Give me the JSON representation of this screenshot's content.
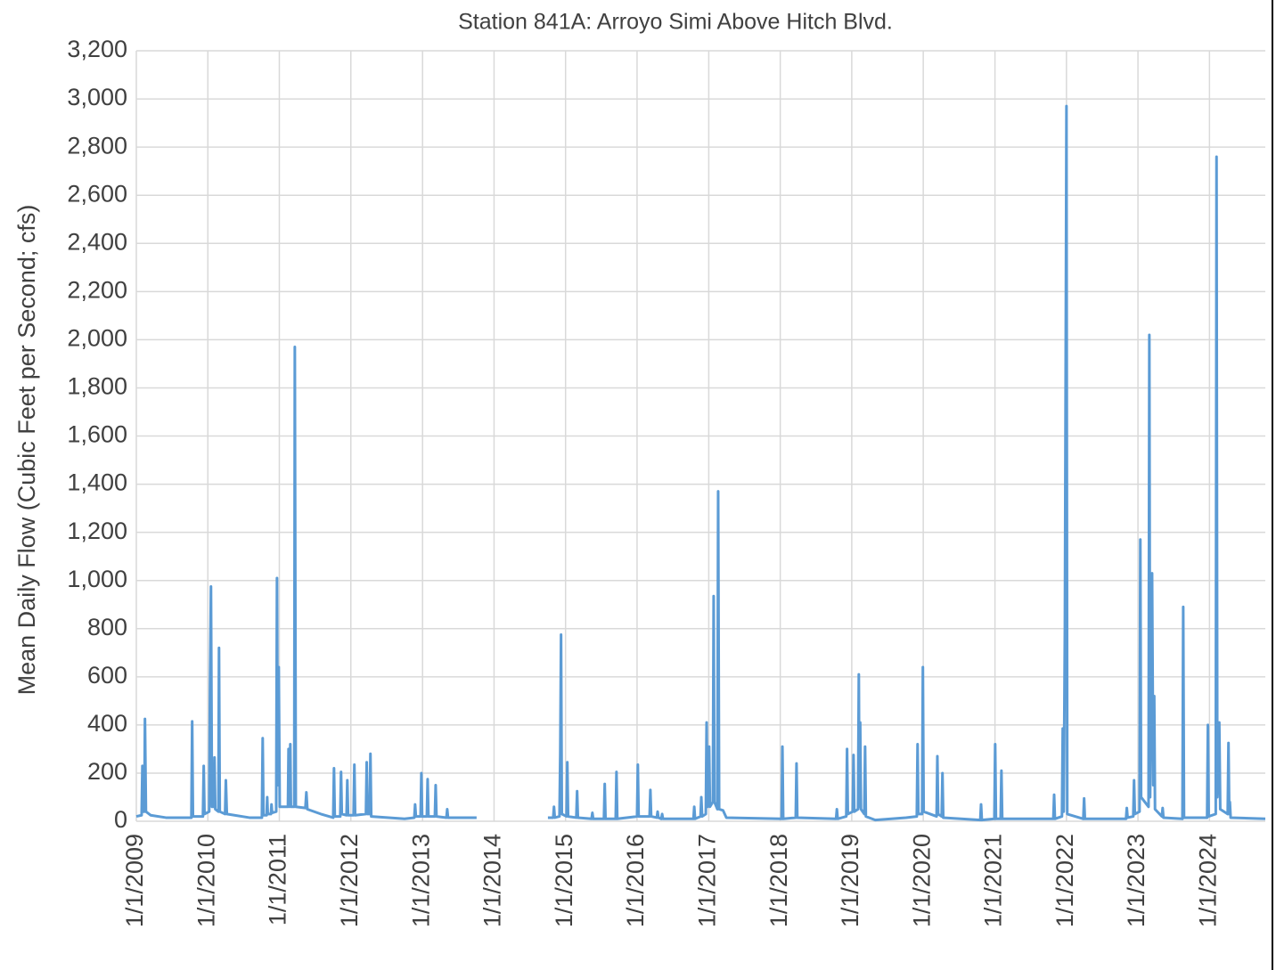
{
  "chart_data": {
    "type": "line",
    "title": "Station 841A: Arroyo Simi Above Hitch Blvd.",
    "y_label": "Mean Daily Flow (Cubic Feet per Second; cfs)",
    "ylim": [
      0,
      3200
    ],
    "yticks": [
      0,
      200,
      400,
      600,
      800,
      {
        "value": 1000,
        "label": "1,000"
      },
      {
        "value": 1200,
        "label": "1,200"
      },
      {
        "value": 1400,
        "label": "1,400"
      },
      {
        "value": 1600,
        "label": "1,600"
      },
      {
        "value": 1800,
        "label": "1,800"
      },
      {
        "value": 2000,
        "label": "2,000"
      },
      {
        "value": 2200,
        "label": "2,200"
      },
      {
        "value": 2400,
        "label": "2,400"
      },
      {
        "value": 2600,
        "label": "2,600"
      },
      {
        "value": 2800,
        "label": "2,800"
      },
      {
        "value": 3000,
        "label": "3,000"
      },
      {
        "value": 3200,
        "label": "3,200"
      }
    ],
    "xlim": [
      "1/1/2009",
      "10/12/2024"
    ],
    "xticks": [
      "1/1/2009",
      "1/1/2010",
      "1/1/2011",
      "1/1/2012",
      "1/1/2013",
      "1/1/2014",
      "1/1/2015",
      "1/1/2016",
      "1/1/2017",
      "1/1/2018",
      "1/1/2019",
      "1/1/2020",
      "1/1/2021",
      "1/1/2022",
      "1/1/2023",
      "1/1/2024"
    ],
    "grid": true,
    "x": [
      "1/1/2009",
      "1/28/2009",
      "2/1/2009",
      "2/5/2009",
      "2/11/2009",
      "2/14/2009",
      "2/19/2009",
      "3/15/2009",
      "6/1/2009",
      "10/9/2009",
      "10/13/2009",
      "10/17/2009",
      "12/7/2009",
      "12/11/2009",
      "12/15/2009",
      "1/8/2010",
      "1/12/2010",
      "1/17/2010",
      "1/22/2010",
      "2/1/2010",
      "2/4/2010",
      "2/8/2010",
      "2/24/2010",
      "2/27/2010",
      "3/3/2010",
      "3/30/2010",
      "4/3/2010",
      "4/8/2010",
      "8/1/2010",
      "10/4/2010",
      "10/8/2010",
      "10/12/2010",
      "10/28/2010",
      "10/31/2010",
      "11/3/2010",
      "11/19/2010",
      "11/22/2010",
      "11/25/2010",
      "12/16/2010",
      "12/20/2010",
      "12/24/2010",
      "12/29/2010",
      "1/3/2011",
      "2/14/2011",
      "2/17/2011",
      "2/21/2011",
      "2/26/2011",
      "3/1/2011",
      "3/18/2011",
      "3/21/2011",
      "3/26/2011",
      "5/14/2011",
      "5/19/2011",
      "5/24/2011",
      "8/1/2011",
      "10/3/2011",
      "10/7/2011",
      "10/11/2011",
      "11/8/2011",
      "11/12/2011",
      "11/16/2011",
      "12/10/2011",
      "12/14/2011",
      "12/18/2011",
      "1/15/2012",
      "1/19/2012",
      "1/23/2012",
      "3/18/2012",
      "3/22/2012",
      "3/26/2012",
      "4/6/2012",
      "4/10/2012",
      "4/14/2012",
      "10/1/2012",
      "11/20/2012",
      "11/24/2012",
      "11/28/2012",
      "12/22/2012",
      "12/26/2012",
      "12/30/2012",
      "1/23/2013",
      "1/27/2013",
      "1/31/2013",
      "3/5/2013",
      "3/9/2013",
      "3/13/2013",
      "5/3/2013",
      "5/7/2013",
      "5/11/2013",
      "10/4/2013",
      "10/15/2013",
      "10/3/2014",
      "10/30/2014",
      "11/3/2014",
      "11/7/2014",
      "12/1/2014",
      "12/5/2014",
      "12/9/2014",
      "12/13/2014",
      "1/6/2015",
      "1/10/2015",
      "1/14/2015",
      "2/25/2015",
      "3/1/2015",
      "3/5/2015",
      "5/14/2015",
      "5/18/2015",
      "5/22/2015",
      "7/16/2015",
      "7/20/2015",
      "7/24/2015",
      "9/14/2015",
      "9/18/2015",
      "9/22/2015",
      "1/1/2016",
      "1/5/2016",
      "1/9/2016",
      "3/5/2016",
      "3/9/2016",
      "3/13/2016",
      "4/11/2016",
      "4/15/2016",
      "4/19/2016",
      "5/4/2016",
      "5/8/2016",
      "5/12/2016",
      "10/15/2016",
      "10/19/2016",
      "10/23/2016",
      "11/20/2016",
      "11/24/2016",
      "11/28/2016",
      "12/17/2016",
      "12/21/2016",
      "12/25/2016",
      "1/3/2017",
      "1/7/2017",
      "1/22/2017",
      "1/26/2017",
      "1/30/2017",
      "2/14/2017",
      "2/18/2017",
      "2/23/2017",
      "3/15/2017",
      "4/1/2017",
      "1/8/2018",
      "1/12/2018",
      "1/16/2018",
      "3/21/2018",
      "3/25/2018",
      "3/29/2018",
      "10/13/2018",
      "10/17/2018",
      "10/21/2018",
      "12/4/2018",
      "12/8/2018",
      "12/12/2018",
      "1/6/2019",
      "1/10/2019",
      "1/14/2019",
      "2/2/2019",
      "2/6/2019",
      "2/9/2019",
      "2/13/2019",
      "2/17/2019",
      "3/6/2019",
      "3/10/2019",
      "3/14/2019",
      "5/1/2019",
      "10/5/2019",
      "11/29/2019",
      "12/3/2019",
      "12/7/2019",
      "12/26/2019",
      "12/30/2019",
      "1/3/2020",
      "3/9/2020",
      "3/13/2020",
      "3/17/2020",
      "4/4/2020",
      "4/8/2020",
      "4/12/2020",
      "10/18/2020",
      "10/22/2020",
      "10/26/2020",
      "12/29/2020",
      "1/2/2021",
      "1/6/2021",
      "1/30/2021",
      "2/3/2021",
      "2/7/2021",
      "10/26/2021",
      "10/30/2021",
      "11/3/2021",
      "12/9/2021",
      "12/13/2021",
      "12/18/2021",
      "12/24/2021",
      "1/1/2022",
      "1/5/2022",
      "3/28/2022",
      "4/1/2022",
      "4/5/2022",
      "11/1/2022",
      "11/5/2022",
      "11/9/2022",
      "12/8/2022",
      "12/12/2022",
      "12/16/2022",
      "1/9/2023",
      "1/13/2023",
      "1/17/2023",
      "2/24/2023",
      "2/28/2023",
      "3/4/2023",
      "3/14/2023",
      "3/20/2023",
      "3/25/2023",
      "3/29/2023",
      "5/3/2023",
      "5/7/2023",
      "5/11/2023",
      "8/16/2023",
      "8/20/2023",
      "8/24/2023",
      "12/20/2023",
      "12/24/2023",
      "12/28/2023",
      "2/2/2024",
      "2/6/2024",
      "2/10/2024",
      "2/20/2024",
      "2/25/2024",
      "4/3/2024",
      "4/7/2024",
      "4/11/2024",
      "4/14/2024",
      "4/18/2024",
      "10/12/2024"
    ],
    "series": [
      {
        "color": "#5b9bd5",
        "values": [
          20,
          25,
          230,
          40,
          40,
          425,
          40,
          25,
          15,
          15,
          415,
          20,
          20,
          230,
          30,
          40,
          550,
          975,
          60,
          60,
          265,
          50,
          40,
          720,
          40,
          30,
          170,
          30,
          15,
          15,
          345,
          25,
          25,
          100,
          30,
          30,
          70,
          35,
          40,
          1010,
          150,
          640,
          60,
          60,
          300,
          60,
          320,
          60,
          60,
          1970,
          60,
          55,
          120,
          50,
          30,
          15,
          220,
          20,
          20,
          205,
          30,
          25,
          170,
          25,
          25,
          235,
          25,
          30,
          245,
          30,
          30,
          280,
          20,
          10,
          15,
          70,
          20,
          20,
          200,
          20,
          20,
          175,
          20,
          20,
          150,
          20,
          15,
          50,
          15,
          15,
          null,
          15,
          15,
          60,
          15,
          20,
          280,
          775,
          30,
          20,
          245,
          20,
          15,
          125,
          15,
          10,
          35,
          10,
          10,
          155,
          10,
          10,
          205,
          10,
          20,
          235,
          20,
          20,
          130,
          20,
          15,
          40,
          15,
          10,
          30,
          10,
          10,
          60,
          10,
          20,
          100,
          20,
          30,
          410,
          60,
          310,
          60,
          80,
          935,
          80,
          50,
          1370,
          50,
          45,
          15,
          10,
          310,
          10,
          15,
          240,
          15,
          10,
          50,
          10,
          20,
          300,
          30,
          40,
          275,
          40,
          50,
          610,
          60,
          410,
          50,
          30,
          310,
          20,
          5,
          15,
          20,
          320,
          30,
          30,
          640,
          40,
          20,
          270,
          30,
          20,
          200,
          15,
          5,
          70,
          5,
          10,
          320,
          10,
          10,
          210,
          10,
          10,
          110,
          10,
          20,
          385,
          40,
          810,
          2970,
          30,
          10,
          95,
          10,
          10,
          55,
          15,
          20,
          170,
          30,
          40,
          1170,
          100,
          60,
          2020,
          100,
          1030,
          150,
          520,
          50,
          20,
          55,
          15,
          10,
          890,
          15,
          15,
          400,
          20,
          30,
          2760,
          100,
          410,
          50,
          30,
          325,
          30,
          80,
          15,
          10
        ]
      }
    ]
  }
}
